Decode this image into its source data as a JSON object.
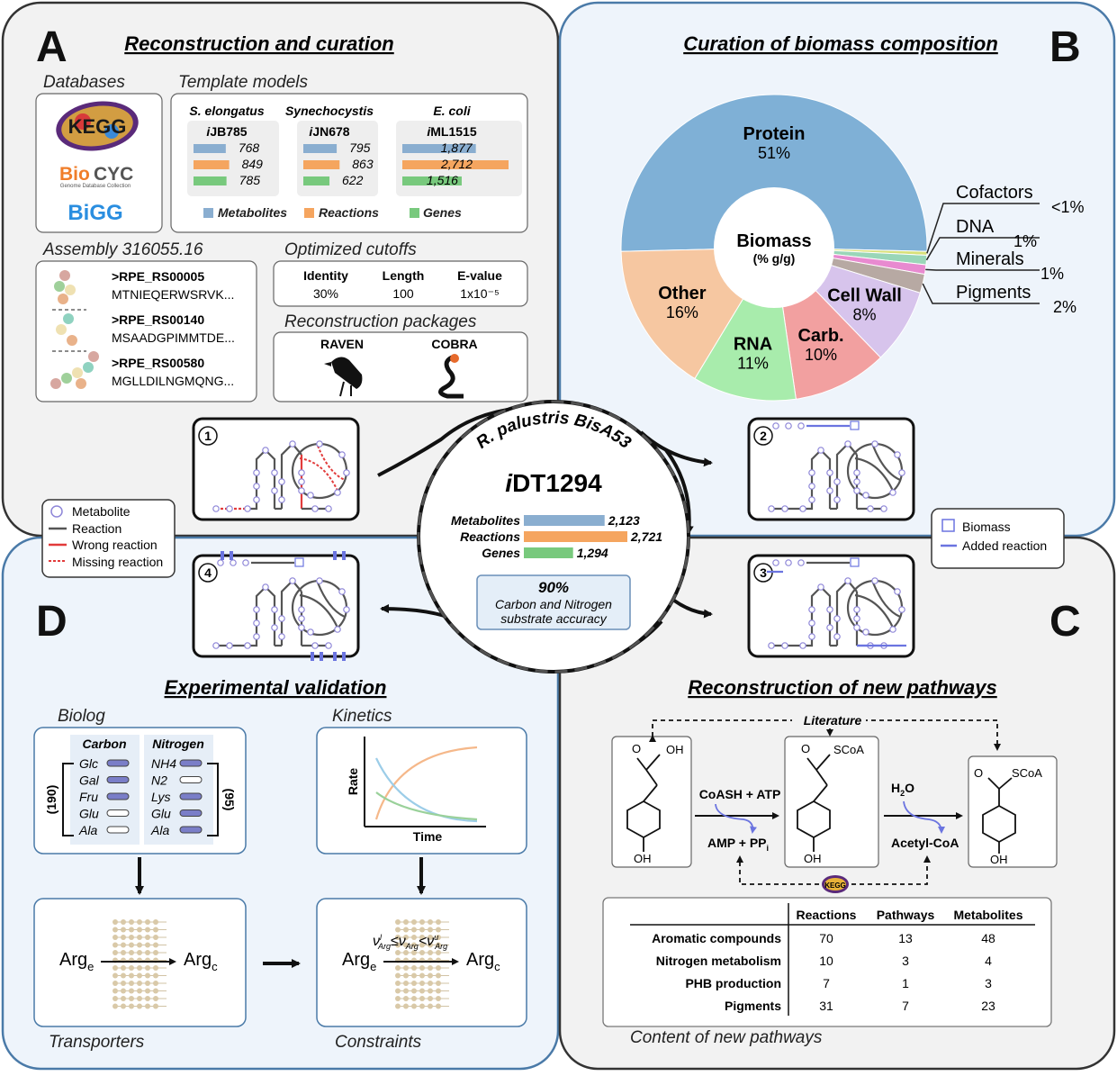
{
  "panels": {
    "a": {
      "letter": "A",
      "title": "Reconstruction and curation"
    },
    "b": {
      "letter": "B",
      "title": "Curation of biomass composition"
    },
    "c": {
      "letter": "C",
      "title": "Reconstruction of new pathways"
    },
    "d": {
      "letter": "D",
      "title": "Experimental validation"
    }
  },
  "databases": {
    "heading": "Databases",
    "kegg": "KEGG",
    "biocyc_bio": "Bio",
    "biocyc_cyc": "CYC",
    "biocyc_sub": "Genome Database Collection",
    "bigg": "BiGG"
  },
  "templates": {
    "heading": "Template models",
    "models": [
      {
        "organism": "S. elongatus",
        "prefix": "i",
        "name": "JB785",
        "metabolites": "768",
        "reactions": "849",
        "genes": "785"
      },
      {
        "organism": "Synechocystis",
        "prefix": "i",
        "name": "JN678",
        "metabolites": "795",
        "reactions": "863",
        "genes": "622"
      },
      {
        "organism": "E. coli",
        "prefix": "i",
        "name": "ML1515",
        "metabolites": "1,877",
        "reactions": "2,712",
        "genes": "1,516"
      }
    ],
    "legend": {
      "metabolites": "Metabolites",
      "reactions": "Reactions",
      "genes": "Genes"
    }
  },
  "colors": {
    "metabolites": "#8aaed0",
    "reactions": "#f5a55f",
    "genes": "#78c97d",
    "added": "#6b74e0",
    "wrong": "#e23b3b"
  },
  "assembly": {
    "heading": "Assembly 316055.16",
    "seqs": [
      {
        "id": ">RPE_RS00005",
        "seq": "MTNIEQERWSRVK..."
      },
      {
        "id": ">RPE_RS00140",
        "seq": "MSAADGPIMMTDE..."
      },
      {
        "id": ">RPE_RS00580",
        "seq": "MGLLDILNGMQNG..."
      }
    ]
  },
  "cutoffs": {
    "heading": "Optimized cutoffs",
    "headers": [
      "Identity",
      "Length",
      "E-value"
    ],
    "values": [
      "30%",
      "100",
      "1x10⁻⁵"
    ]
  },
  "packages": {
    "heading": "Reconstruction packages",
    "raven": "RAVEN",
    "cobra": "COBRA"
  },
  "legend1": {
    "metabolite": "Metabolite",
    "reaction": "Reaction",
    "wrong": "Wrong reaction",
    "missing": "Missing reaction"
  },
  "legend2": {
    "biomass": "Biomass",
    "added": "Added reaction"
  },
  "steps": [
    "1",
    "2",
    "3",
    "4"
  ],
  "center": {
    "organism": "R. palustris BisA53",
    "model_prefix": "i",
    "model_name": "DT1294",
    "stats": [
      {
        "label": "Metabolites",
        "value": "2,123",
        "n": 2123
      },
      {
        "label": "Reactions",
        "value": "2,721",
        "n": 2721
      },
      {
        "label": "Genes",
        "value": "1,294",
        "n": 1294
      }
    ],
    "accuracy_pct": "90%",
    "accuracy_line1": "Carbon and Nitrogen",
    "accuracy_line2": "substrate accuracy"
  },
  "chart_data": {
    "type": "pie",
    "center_label": "Biomass",
    "center_sub": "(% g/g)",
    "slices": [
      {
        "label": "Protein",
        "pct": "51%",
        "value": 51,
        "color": "#7fb0d6"
      },
      {
        "label": "Cofactors",
        "pct": "<1%",
        "value": 0.4,
        "color": "#d8e07a"
      },
      {
        "label": "DNA",
        "pct": "1%",
        "value": 1,
        "color": "#9ad6b8"
      },
      {
        "label": "Minerals",
        "pct": "1%",
        "value": 1,
        "color": "#e88ad0"
      },
      {
        "label": "Pigments",
        "pct": "2%",
        "value": 2,
        "color": "#b7a9a3"
      },
      {
        "label": "Cell Wall",
        "pct": "8%",
        "value": 8,
        "color": "#d7c4ec"
      },
      {
        "label": "Carb.",
        "pct": "10%",
        "value": 10,
        "color": "#f2a0a0"
      },
      {
        "label": "RNA",
        "pct": "11%",
        "value": 11,
        "color": "#a8ecac"
      },
      {
        "label": "Other",
        "pct": "16%",
        "value": 16,
        "color": "#f6c7a1"
      }
    ]
  },
  "pathway": {
    "literature": "Literature",
    "oh": "OH",
    "o": "O",
    "scoa": "SCoA",
    "cofactor_in": "CoASH + ATP",
    "cofactor_out": "AMP + PP",
    "cofactor_out_sub": "i",
    "water": "H",
    "water_sub": "2",
    "water_o": "O",
    "acetyl": "Acetyl-CoA",
    "kegg_small": "KEGG"
  },
  "new_pathways": {
    "headers": [
      "Reactions",
      "Pathways",
      "Metabolites"
    ],
    "rows": [
      {
        "name": "Aromatic compounds",
        "reactions": "70",
        "pathways": "13",
        "metabolites": "48"
      },
      {
        "name": "Nitrogen metabolism",
        "reactions": "10",
        "pathways": "3",
        "metabolites": "4"
      },
      {
        "name": "PHB production",
        "reactions": "7",
        "pathways": "1",
        "metabolites": "3"
      },
      {
        "name": "Pigments",
        "reactions": "31",
        "pathways": "7",
        "metabolites": "23"
      }
    ],
    "caption": "Content of new pathways"
  },
  "biolog": {
    "heading": "Biolog",
    "carbon_head": "Carbon",
    "nitrogen_head": "Nitrogen",
    "carbon": [
      "Glc",
      "Gal",
      "Fru",
      "Glu",
      "Ala"
    ],
    "nitrogen": [
      "NH4",
      "N2",
      "Lys",
      "Glu",
      "Ala"
    ],
    "carbon_count": "(190)",
    "nitrogen_count": "(95)"
  },
  "kinetics": {
    "heading": "Kinetics",
    "ylabel": "Rate",
    "xlabel": "Time"
  },
  "transport": {
    "arg_e": "Arg",
    "arg_c": "Arg",
    "sub_e": "e",
    "sub_c": "c",
    "caption": "Transporters",
    "caption2": "Constraints",
    "constraint_v": "ν",
    "sub_arg": "Arg",
    "sup_l": "l",
    "sup_u": "u"
  }
}
